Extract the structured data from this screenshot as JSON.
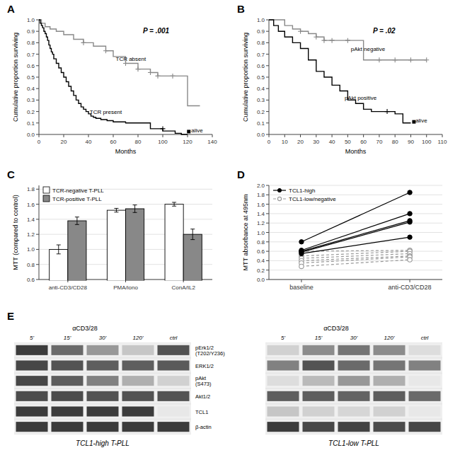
{
  "chart_data": [
    {
      "type": "line",
      "title": "A",
      "xlabel": "Months",
      "ylabel": "Cumulative proportion surviving",
      "xlim": [
        0,
        140
      ],
      "ylim": [
        0.0,
        1.0
      ],
      "xticks": [
        0,
        20,
        40,
        60,
        80,
        100,
        120,
        140
      ],
      "yticks": [
        {
          "value": 0.0,
          "label": "0.0"
        },
        0.1,
        0.2,
        0.3,
        0.4,
        0.5,
        0.6,
        0.7,
        0.8,
        0.9,
        {
          "value": 1.0,
          "label": "1.0"
        }
      ],
      "grid": false,
      "series": [
        {
          "type": "step",
          "color": "#888888",
          "x": [
            0,
            2,
            5,
            9,
            14,
            20,
            28,
            36,
            44,
            54,
            60,
            70,
            80,
            90,
            96,
            102,
            108,
            120,
            130
          ],
          "values": [
            1.0,
            0.97,
            0.94,
            0.92,
            0.9,
            0.87,
            0.83,
            0.8,
            0.77,
            0.73,
            0.68,
            0.62,
            0.57,
            0.54,
            0.51,
            0.51,
            0.51,
            0.25,
            0.25
          ]
        },
        {
          "type": "step",
          "color": "#000000",
          "x": [
            0,
            1,
            2,
            3,
            4,
            5,
            6,
            7,
            8,
            9,
            10,
            11,
            12,
            14,
            16,
            18,
            20,
            22,
            24,
            26,
            28,
            30,
            32,
            34,
            36,
            38,
            40,
            42,
            44,
            46,
            50,
            55,
            60,
            65,
            70,
            80,
            90,
            100,
            110,
            115,
            120
          ],
          "values": [
            1.0,
            0.97,
            0.95,
            0.93,
            0.9,
            0.88,
            0.85,
            0.82,
            0.78,
            0.75,
            0.72,
            0.7,
            0.66,
            0.62,
            0.58,
            0.54,
            0.5,
            0.46,
            0.42,
            0.38,
            0.34,
            0.3,
            0.27,
            0.24,
            0.22,
            0.2,
            0.18,
            0.16,
            0.15,
            0.14,
            0.13,
            0.12,
            0.11,
            0.11,
            0.1,
            0.1,
            0.05,
            0.03,
            0.01,
            0.0,
            0.0
          ]
        },
        {
          "type": "scatter",
          "marker": "plus",
          "color": "#888888",
          "x": [
            36,
            54,
            70,
            80,
            90,
            96,
            108
          ],
          "values": [
            0.8,
            0.73,
            0.62,
            0.57,
            0.54,
            0.51,
            0.51
          ]
        },
        {
          "type": "scatter",
          "marker": "plus",
          "color": "#000000",
          "x": [
            100
          ],
          "values": [
            0.05
          ]
        },
        {
          "type": "scatter",
          "marker": "square",
          "color": "#000000",
          "x": [
            121
          ],
          "values": [
            0.025
          ]
        }
      ],
      "annotations": [
        {
          "text": "TCR absent",
          "x": 62,
          "y": 0.64
        },
        {
          "text": "TCR present",
          "x": 41,
          "y": 0.18
        },
        {
          "text": "alive",
          "x": 123,
          "y": 0.02
        },
        {
          "text": "P = .001"
        }
      ]
    },
    {
      "type": "line",
      "title": "B",
      "xlabel": "Months",
      "ylabel": "Cumulative proportion surviving",
      "xlim": [
        0,
        110
      ],
      "ylim": [
        0.0,
        1.0
      ],
      "xticks": [
        0,
        10,
        20,
        30,
        40,
        50,
        60,
        70,
        80,
        90,
        100,
        110
      ],
      "yticks": [
        {
          "value": 0.0,
          "label": "0.0"
        },
        0.1,
        0.2,
        0.3,
        0.4,
        0.5,
        0.6,
        0.7,
        0.8,
        0.9,
        {
          "value": 1.0,
          "label": "1.0"
        }
      ],
      "grid": false,
      "series": [
        {
          "type": "step",
          "color": "#888888",
          "x": [
            0,
            5,
            10,
            15,
            20,
            25,
            30,
            35,
            40,
            50,
            60,
            70,
            80,
            90,
            100
          ],
          "values": [
            1.0,
            1.0,
            0.95,
            0.92,
            0.9,
            0.88,
            0.85,
            0.82,
            0.82,
            0.82,
            0.65,
            0.65,
            0.65,
            0.65,
            0.65
          ]
        },
        {
          "type": "step",
          "color": "#000000",
          "x": [
            0,
            3,
            6,
            10,
            15,
            20,
            25,
            30,
            35,
            40,
            45,
            50,
            55,
            60,
            65,
            70,
            75,
            80,
            85,
            90
          ],
          "values": [
            1.0,
            0.95,
            0.9,
            0.85,
            0.8,
            0.75,
            0.65,
            0.55,
            0.5,
            0.43,
            0.38,
            0.3,
            0.27,
            0.22,
            0.2,
            0.2,
            0.2,
            0.18,
            0.1,
            0.1
          ]
        },
        {
          "type": "scatter",
          "marker": "plus",
          "color": "#888888",
          "x": [
            20,
            30,
            35,
            40,
            50,
            70,
            80,
            90,
            100
          ],
          "values": [
            0.9,
            0.85,
            0.82,
            0.82,
            0.82,
            0.65,
            0.65,
            0.65,
            0.65
          ]
        },
        {
          "type": "scatter",
          "marker": "plus",
          "color": "#000000",
          "x": [
            75
          ],
          "values": [
            0.2
          ]
        },
        {
          "type": "scatter",
          "marker": "square",
          "color": "#000000",
          "x": [
            92
          ],
          "values": [
            0.11
          ]
        }
      ],
      "annotations": [
        {
          "text": "pAkt negative",
          "x": 52,
          "y": 0.73
        },
        {
          "text": "pAkt positive",
          "x": 48,
          "y": 0.3
        },
        {
          "text": "alive",
          "x": 93,
          "y": 0.105
        },
        {
          "text": "P = .02"
        }
      ]
    },
    {
      "type": "bar",
      "title": "C",
      "ylabel": "MTT (compared to control)",
      "categories": [
        "anti-CD3/CD28",
        "PMA/iono",
        "ConA/IL2"
      ],
      "series": [
        {
          "name": "TCR-negative T-PLL",
          "color": "#ffffff",
          "values": [
            1.0,
            1.52,
            1.6
          ],
          "errors": [
            0.06,
            0.025,
            0.025
          ]
        },
        {
          "name": "TCR-positive T-PLL",
          "color": "#888888",
          "values": [
            1.38,
            1.54,
            1.2
          ],
          "errors": [
            0.05,
            0.05,
            0.07
          ]
        }
      ],
      "ylim": [
        0.6,
        1.85
      ],
      "yticks": [
        0.6,
        0.8,
        {
          "value": 1.0,
          "label": "1.0"
        },
        1.2,
        1.4,
        1.6,
        1.8
      ],
      "grid": true,
      "legend": "upper left"
    },
    {
      "type": "paired",
      "title": "D",
      "ylabel": "MTT absorbance at 495nm",
      "categories": [
        "baseline",
        "anti-CD3/CD28"
      ],
      "series": [
        {
          "name": "TCL1-high",
          "color": "#000000",
          "line_style": "solid",
          "marker": "filled-circle",
          "values": [
            [
              0.8,
              1.85
            ],
            [
              0.62,
              1.4
            ],
            [
              0.6,
              1.25
            ],
            [
              0.58,
              1.22
            ],
            [
              0.55,
              0.9
            ]
          ]
        },
        {
          "name": "TCL1-low/negative",
          "color": "#999999",
          "line_style": "dashed",
          "marker": "open-circle",
          "values": [
            [
              0.6,
              0.62
            ],
            [
              0.5,
              0.6
            ],
            [
              0.45,
              0.55
            ],
            [
              0.4,
              0.5
            ],
            [
              0.35,
              0.48
            ],
            [
              0.28,
              0.42
            ]
          ]
        }
      ],
      "ylim": [
        0.0,
        2.0
      ],
      "yticks": [
        {
          "value": 0.0,
          "label": "0.0"
        },
        0.2,
        0.4,
        0.6,
        0.8,
        {
          "value": 1.0,
          "label": "1.0"
        },
        1.2,
        1.4,
        1.6,
        1.8,
        {
          "value": 2.0,
          "label": "2.0"
        }
      ],
      "grid": true,
      "legend": "upper left"
    },
    {
      "type": "heatmap",
      "title": "E",
      "rows": [
        "pErk1/2\n(T202/Y236)",
        "ERK1/2",
        "pAkt\n(S473)",
        "Akt1/2",
        "TCL1",
        "β-actin"
      ],
      "series": [
        {
          "name": "TCL1-high T-PLL",
          "categories": [
            "5'",
            "15'",
            "30'",
            "120'",
            "ctrl"
          ],
          "cells": [
            [
              0.85,
              0.65,
              0.45,
              0.25,
              0.75
            ],
            [
              0.8,
              0.75,
              0.7,
              0.7,
              0.72
            ],
            [
              0.8,
              0.7,
              0.55,
              0.35,
              0.2
            ],
            [
              0.78,
              0.78,
              0.75,
              0.75,
              0.75
            ],
            [
              0.85,
              0.85,
              0.85,
              0.85,
              0.1
            ],
            [
              0.85,
              0.85,
              0.85,
              0.85,
              0.85
            ]
          ]
        },
        {
          "name": "TCL1-low T-PLL",
          "categories": [
            "5'",
            "15'",
            "30'",
            "120'",
            "ctrl"
          ],
          "cells": [
            [
              0.2,
              0.5,
              0.6,
              0.5,
              0.15
            ],
            [
              0.55,
              0.75,
              0.65,
              0.6,
              0.55
            ],
            [
              0.15,
              0.3,
              0.45,
              0.35,
              0.1
            ],
            [
              0.7,
              0.7,
              0.68,
              0.7,
              0.65
            ],
            [
              0.25,
              0.2,
              0.18,
              0.2,
              0.1
            ],
            [
              0.85,
              0.8,
              0.82,
              0.78,
              0.8
            ]
          ]
        }
      ],
      "annotations": [
        {
          "text": "αCD3/28"
        },
        {
          "text": "αCD3/28"
        }
      ]
    }
  ]
}
